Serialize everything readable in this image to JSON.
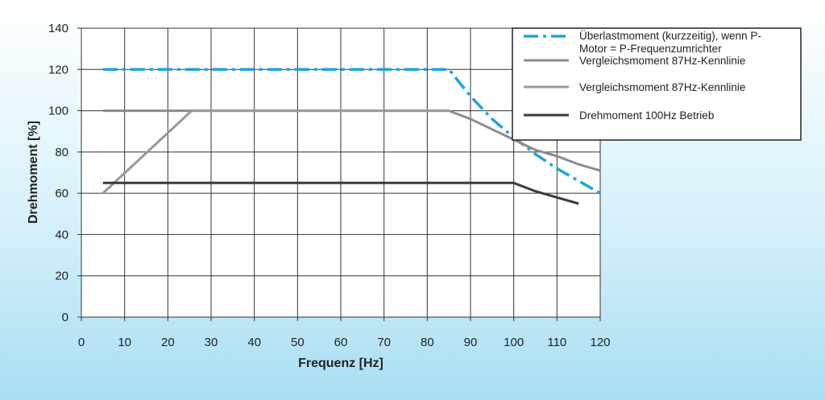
{
  "chart_data": {
    "type": "line",
    "title": "",
    "xlabel": "Frequenz [Hz]",
    "ylabel": "Drehmoment [%]",
    "xlim": [
      0,
      120
    ],
    "ylim": [
      0,
      140
    ],
    "x_ticks": [
      0,
      10,
      20,
      30,
      40,
      50,
      60,
      70,
      80,
      90,
      100,
      110,
      120
    ],
    "y_ticks": [
      0,
      20,
      40,
      60,
      80,
      100,
      120,
      140
    ],
    "grid": true,
    "legend_position": "top-right",
    "series": [
      {
        "name_line1": "Überlastmoment (kurzzeitig), wenn P-",
        "name_line2": "Motor = P-Frequenzumrichter",
        "color": "#1aa6de",
        "style": "dashdot",
        "x": [
          5,
          85,
          90,
          95,
          100,
          105,
          110,
          115,
          120
        ],
        "y": [
          120,
          120,
          107,
          96,
          87,
          79,
          72,
          66,
          60
        ]
      },
      {
        "name": "Vergleichsmoment 87Hz-Kennlinie",
        "color": "#8c8c8c",
        "style": "solid",
        "x": [
          5,
          85,
          90,
          95,
          100,
          105,
          110,
          115,
          120
        ],
        "y": [
          100,
          100,
          96,
          91,
          86,
          81,
          78,
          74,
          71
        ]
      },
      {
        "name": "Vergleichsmoment 87Hz-Kennlinie",
        "color": "#9a9a9a",
        "style": "solid",
        "x": [
          5,
          25.5,
          85
        ],
        "y": [
          60,
          100,
          100
        ]
      },
      {
        "name": "Drehmoment 100Hz Betrieb",
        "color": "#3a3a3a",
        "style": "solid",
        "x": [
          5,
          100,
          105,
          110,
          115
        ],
        "y": [
          65,
          65,
          61,
          58,
          55
        ]
      }
    ]
  }
}
